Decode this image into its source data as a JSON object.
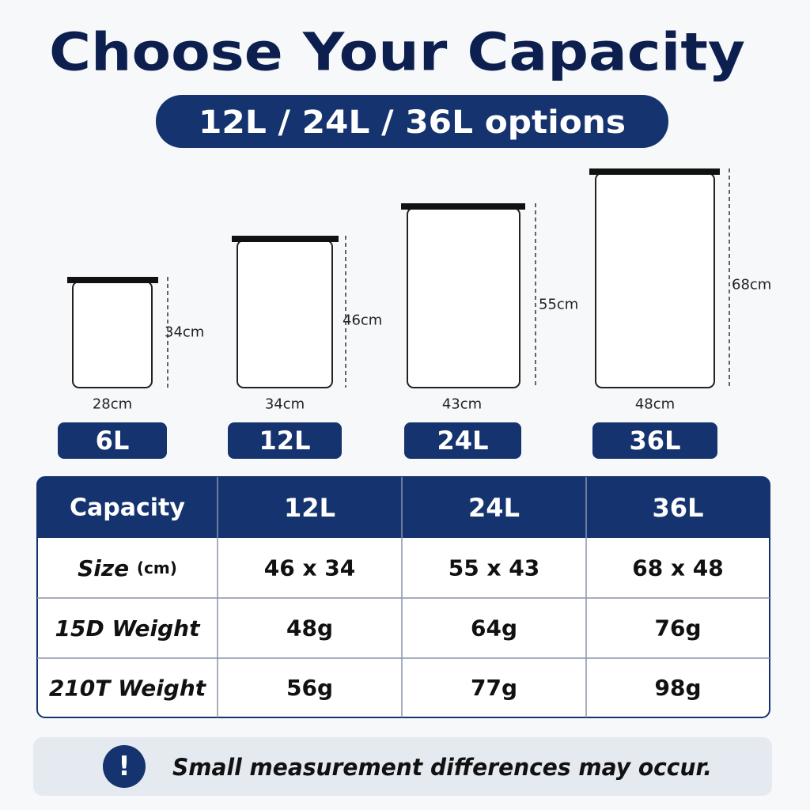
{
  "header": {
    "title": "Choose Your Capacity",
    "subtitle": "12L / 24L / 36L options"
  },
  "bags": [
    {
      "height": "34cm",
      "width": "28cm",
      "capacity": "6L"
    },
    {
      "height": "46cm",
      "width": "34cm",
      "capacity": "12L"
    },
    {
      "height": "55cm",
      "width": "43cm",
      "capacity": "24L"
    },
    {
      "height": "68cm",
      "width": "48cm",
      "capacity": "36L"
    }
  ],
  "table": {
    "header": [
      "Capacity",
      "12L",
      "24L",
      "36L"
    ],
    "rows": [
      {
        "label": "Size",
        "unit": "(cm)",
        "cells": [
          "46 x 34",
          "55 x 43",
          "68 x 48"
        ]
      },
      {
        "label": "15D Weight",
        "cells": [
          "48g",
          "64g",
          "76g"
        ]
      },
      {
        "label": "210T Weight",
        "cells": [
          "56g",
          "77g",
          "98g"
        ]
      }
    ]
  },
  "note": {
    "icon": "!",
    "text": "Small measurement differences may occur."
  }
}
